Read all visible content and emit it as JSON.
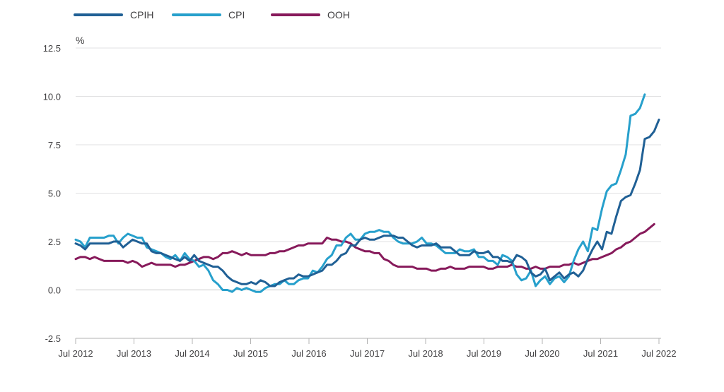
{
  "chart_data": {
    "type": "line",
    "ylabel": "%",
    "ylim": [
      -2.5,
      12.5
    ],
    "yticks": [
      "12.5",
      "10.0",
      "7.5",
      "5.0",
      "2.5",
      "0.0",
      "-2.5"
    ],
    "ytick_values": [
      12.5,
      10.0,
      7.5,
      5.0,
      2.5,
      0.0,
      -2.5
    ],
    "xticks": [
      "Jul 2012",
      "Jul 2013",
      "Jul 2014",
      "Jul 2015",
      "Jul 2016",
      "Jul 2017",
      "Jul 2018",
      "Jul 2019",
      "Jul 2020",
      "Jul 2021",
      "Jul 2022"
    ],
    "x_start": "Jul 2012",
    "x_end": "Jul 2022",
    "grid": "horizontal",
    "legend_position": "top-left",
    "series": [
      {
        "name": "CPIH",
        "color": "#206095",
        "values": [
          2.4,
          2.3,
          2.1,
          2.4,
          2.4,
          2.4,
          2.4,
          2.4,
          2.5,
          2.5,
          2.2,
          2.4,
          2.6,
          2.5,
          2.4,
          2.4,
          2.0,
          1.9,
          1.9,
          1.8,
          1.7,
          1.6,
          1.5,
          1.7,
          1.5,
          1.8,
          1.5,
          1.4,
          1.3,
          1.2,
          1.2,
          1.0,
          0.7,
          0.5,
          0.4,
          0.3,
          0.3,
          0.4,
          0.3,
          0.5,
          0.4,
          0.2,
          0.2,
          0.4,
          0.5,
          0.6,
          0.6,
          0.8,
          0.7,
          0.7,
          0.8,
          0.9,
          1.0,
          1.3,
          1.3,
          1.5,
          1.8,
          1.9,
          2.3,
          2.3,
          2.6,
          2.7,
          2.6,
          2.6,
          2.7,
          2.8,
          2.8,
          2.8,
          2.7,
          2.7,
          2.5,
          2.3,
          2.2,
          2.3,
          2.3,
          2.3,
          2.4,
          2.2,
          2.2,
          2.2,
          2.0,
          1.8,
          1.8,
          1.8,
          2.0,
          1.9,
          1.9,
          2.0,
          1.7,
          1.7,
          1.5,
          1.5,
          1.4,
          1.8,
          1.7,
          1.5,
          0.9,
          0.7,
          0.8,
          1.1,
          0.5,
          0.7,
          0.9,
          0.6,
          0.8,
          0.9,
          0.7,
          1.0,
          1.6,
          2.1,
          2.5,
          2.1,
          3.0,
          2.9,
          3.8,
          4.6,
          4.8,
          4.9,
          5.5,
          6.2,
          7.8,
          7.9,
          8.2,
          8.8
        ]
      },
      {
        "name": "CPI",
        "color": "#27a0cc",
        "values": [
          2.6,
          2.5,
          2.2,
          2.7,
          2.7,
          2.7,
          2.7,
          2.8,
          2.8,
          2.4,
          2.7,
          2.9,
          2.8,
          2.7,
          2.7,
          2.2,
          2.1,
          2.0,
          1.9,
          1.7,
          1.6,
          1.8,
          1.5,
          1.9,
          1.6,
          1.5,
          1.2,
          1.3,
          1.0,
          0.5,
          0.3,
          0.0,
          0.0,
          -0.1,
          0.1,
          0.0,
          0.1,
          0.0,
          -0.1,
          -0.1,
          0.1,
          0.2,
          0.3,
          0.3,
          0.5,
          0.3,
          0.3,
          0.5,
          0.6,
          0.6,
          1.0,
          0.9,
          1.2,
          1.6,
          1.8,
          2.3,
          2.3,
          2.7,
          2.9,
          2.6,
          2.6,
          2.9,
          3.0,
          3.0,
          3.1,
          3.0,
          3.0,
          2.7,
          2.5,
          2.4,
          2.4,
          2.4,
          2.5,
          2.7,
          2.4,
          2.4,
          2.3,
          2.1,
          1.9,
          1.9,
          1.9,
          2.1,
          2.0,
          2.0,
          2.1,
          1.7,
          1.7,
          1.5,
          1.5,
          1.3,
          1.8,
          1.7,
          1.5,
          0.8,
          0.5,
          0.6,
          1.0,
          0.2,
          0.5,
          0.7,
          0.3,
          0.6,
          0.7,
          0.4,
          0.7,
          1.5,
          2.1,
          2.5,
          2.0,
          3.2,
          3.1,
          4.2,
          5.1,
          5.4,
          5.5,
          6.2,
          7.0,
          9.0,
          9.1,
          9.4,
          10.1
        ]
      },
      {
        "name": "OOH",
        "color": "#871a5b",
        "values": [
          1.6,
          1.7,
          1.7,
          1.6,
          1.7,
          1.6,
          1.5,
          1.5,
          1.5,
          1.5,
          1.5,
          1.4,
          1.5,
          1.4,
          1.2,
          1.3,
          1.4,
          1.3,
          1.3,
          1.3,
          1.3,
          1.2,
          1.3,
          1.3,
          1.4,
          1.5,
          1.6,
          1.7,
          1.7,
          1.6,
          1.7,
          1.9,
          1.9,
          2.0,
          1.9,
          1.8,
          1.9,
          1.8,
          1.8,
          1.8,
          1.8,
          1.9,
          1.9,
          2.0,
          2.0,
          2.1,
          2.2,
          2.3,
          2.3,
          2.4,
          2.4,
          2.4,
          2.4,
          2.7,
          2.6,
          2.6,
          2.5,
          2.5,
          2.4,
          2.2,
          2.1,
          2.0,
          2.0,
          1.9,
          1.9,
          1.6,
          1.5,
          1.3,
          1.2,
          1.2,
          1.2,
          1.2,
          1.1,
          1.1,
          1.1,
          1.0,
          1.0,
          1.1,
          1.1,
          1.2,
          1.1,
          1.1,
          1.1,
          1.2,
          1.2,
          1.2,
          1.2,
          1.1,
          1.1,
          1.2,
          1.2,
          1.2,
          1.3,
          1.2,
          1.2,
          1.1,
          1.1,
          1.2,
          1.1,
          1.1,
          1.2,
          1.2,
          1.2,
          1.3,
          1.3,
          1.4,
          1.3,
          1.4,
          1.5,
          1.6,
          1.6,
          1.7,
          1.8,
          1.9,
          2.1,
          2.2,
          2.4,
          2.5,
          2.7,
          2.9,
          3.0,
          3.2,
          3.4
        ]
      }
    ]
  }
}
